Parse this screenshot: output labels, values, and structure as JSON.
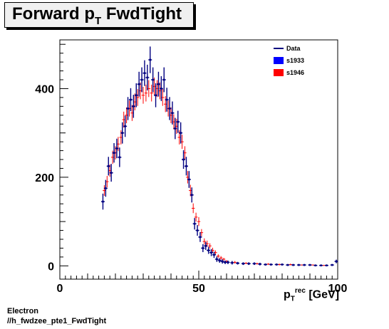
{
  "title": {
    "main": "Forward p",
    "sub": "T",
    "rest": " FwdTight"
  },
  "footer": {
    "line1": "Electron",
    "line2": "//h_fwdzee_pte1_FwdTight"
  },
  "xlabel": {
    "p": "p",
    "sup": "rec",
    "sub": "T",
    "unit": " [GeV]"
  },
  "colors": {
    "data": "#000080",
    "s1933": "#0000ff",
    "s1946": "#ff0000"
  },
  "chart_data": {
    "type": "scatter",
    "xlim": [
      0,
      100
    ],
    "ylim": [
      -30,
      510
    ],
    "xticks": [
      0,
      50,
      100
    ],
    "yticks": [
      0,
      200,
      400
    ],
    "legend": [
      {
        "name": "Data",
        "style": "line"
      },
      {
        "name": "s1933",
        "style": "box"
      },
      {
        "name": "s1946",
        "style": "box"
      }
    ],
    "legend_position": "top-right",
    "series": [
      {
        "name": "Data",
        "x": [
          15.5,
          16.5,
          17.5,
          18.5,
          19.5,
          20.5,
          21.5,
          22.5,
          23.5,
          24.5,
          25.5,
          26.5,
          27.5,
          28.5,
          29.5,
          30.5,
          31.5,
          32.5,
          33.5,
          34.5,
          35.5,
          36.5,
          37.5,
          38.5,
          39.5,
          40.5,
          41.5,
          42.5,
          43.5,
          44.5,
          45.5,
          46.5,
          47.5,
          48.5,
          49.5,
          50.5,
          51.5,
          52.5,
          53.5,
          54.5,
          55.5,
          56.5,
          57.5,
          58.5,
          59.5,
          60.5,
          62,
          64,
          66,
          68,
          70,
          72,
          74,
          76,
          78,
          80,
          82,
          84,
          86,
          88,
          90,
          92,
          94,
          96,
          98,
          99.5
        ],
        "y": [
          145,
          175,
          225,
          210,
          255,
          265,
          245,
          300,
          315,
          355,
          375,
          360,
          385,
          410,
          420,
          435,
          425,
          465,
          420,
          385,
          410,
          400,
          420,
          375,
          355,
          345,
          310,
          325,
          300,
          240,
          225,
          195,
          160,
          95,
          80,
          65,
          40,
          45,
          35,
          30,
          25,
          15,
          12,
          10,
          8,
          8,
          7,
          6,
          5,
          5,
          5,
          4,
          3,
          3,
          3,
          3,
          2,
          2,
          2,
          2,
          2,
          1,
          1,
          1,
          2,
          10
        ],
        "err": [
          18,
          19,
          21,
          20,
          22,
          22,
          22,
          24,
          24,
          26,
          26,
          26,
          27,
          28,
          28,
          29,
          29,
          30,
          28,
          27,
          28,
          28,
          28,
          27,
          26,
          26,
          24,
          25,
          24,
          21,
          21,
          19,
          17,
          13,
          12,
          11,
          9,
          9,
          8,
          8,
          7,
          6,
          5,
          5,
          4,
          4,
          4,
          3,
          3,
          3,
          3,
          3,
          2,
          2,
          2,
          2,
          2,
          2,
          2,
          2,
          2,
          1,
          1,
          1,
          2,
          4
        ]
      },
      {
        "name": "s1946",
        "x": [
          16,
          17,
          18,
          19,
          20,
          21,
          22,
          23,
          24,
          25,
          26,
          27,
          28,
          29,
          30,
          31,
          32,
          33,
          34,
          35,
          36,
          37,
          38,
          39,
          40,
          41,
          42,
          43,
          44,
          45,
          46,
          47,
          48,
          49,
          50,
          51,
          52,
          53,
          54,
          55,
          56,
          57,
          58,
          59,
          60,
          63,
          67,
          71,
          75,
          79,
          83,
          87,
          91,
          95
        ],
        "y": [
          170,
          190,
          215,
          245,
          255,
          275,
          290,
          330,
          340,
          355,
          345,
          370,
          380,
          395,
          385,
          390,
          400,
          390,
          405,
          400,
          395,
          380,
          365,
          355,
          340,
          325,
          315,
          290,
          280,
          255,
          200,
          170,
          130,
          110,
          100,
          75,
          55,
          50,
          45,
          35,
          30,
          22,
          18,
          15,
          10,
          8,
          6,
          5,
          4,
          3,
          3,
          2,
          2,
          1
        ],
        "err": [
          12,
          13,
          14,
          15,
          15,
          16,
          16,
          18,
          18,
          18,
          18,
          19,
          19,
          19,
          19,
          19,
          19,
          19,
          20,
          19,
          19,
          19,
          18,
          18,
          18,
          17,
          17,
          16,
          16,
          15,
          14,
          13,
          11,
          10,
          10,
          8,
          7,
          7,
          6,
          6,
          5,
          4,
          4,
          3,
          3,
          3,
          2,
          2,
          2,
          2,
          2,
          1,
          1,
          1
        ]
      }
    ]
  }
}
